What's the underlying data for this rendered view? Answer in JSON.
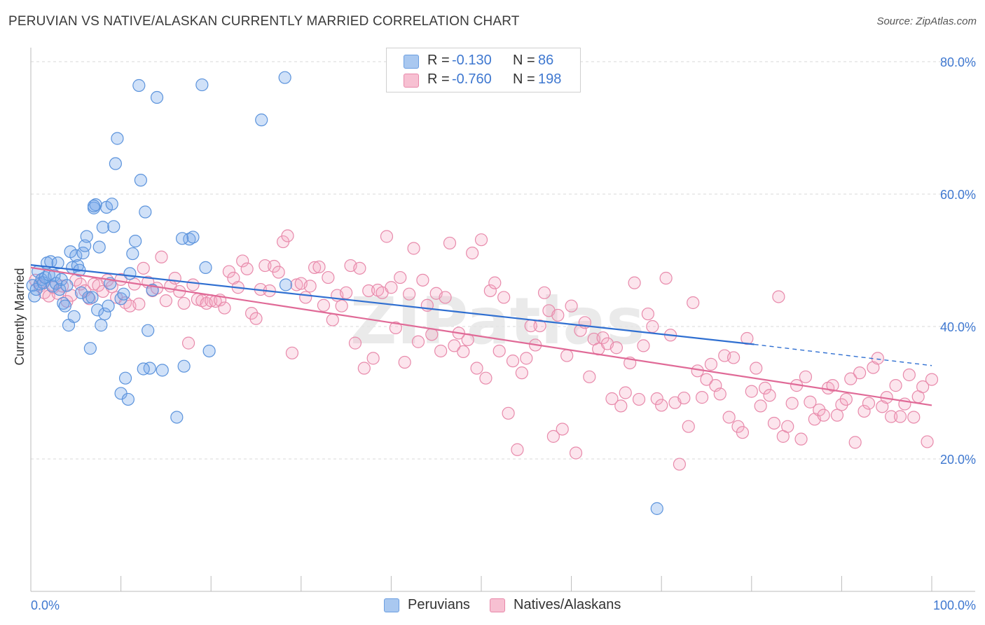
{
  "title": "PERUVIAN VS NATIVE/ALASKAN CURRENTLY MARRIED CORRELATION CHART",
  "source": "Source: ZipAtlas.com",
  "watermark": "ZIPatlas",
  "legend_stats": [
    {
      "r_label": "R =",
      "r_value": "-0.130",
      "n_label": "N =",
      "n_value": "86",
      "color": "#a9c8f0",
      "border": "#6b9ee0"
    },
    {
      "r_label": "R =",
      "r_value": "-0.760",
      "n_label": "N =",
      "n_value": "198",
      "color": "#f7c0d2",
      "border": "#e889aa"
    }
  ],
  "bottom_legend": [
    {
      "label": "Peruvians",
      "color": "#a9c8f0",
      "border": "#6b9ee0"
    },
    {
      "label": "Natives/Alaskans",
      "color": "#f7c0d2",
      "border": "#e889aa"
    }
  ],
  "colors": {
    "blue_fill": "rgba(120,170,235,0.35)",
    "blue_stroke": "#5b93dc",
    "blue_line": "#2f6fd1",
    "pink_fill": "rgba(245,170,195,0.30)",
    "pink_stroke": "#e88aab",
    "pink_line": "#e06a97",
    "grid": "#d9d9d9",
    "tick_label": "#3f78d0"
  },
  "chart_data": {
    "type": "scatter",
    "title": "PERUVIAN VS NATIVE/ALASKAN CURRENTLY MARRIED CORRELATION CHART",
    "xlabel": "",
    "ylabel": "Currently Married",
    "xlim": [
      0,
      100
    ],
    "ylim": [
      0,
      85
    ],
    "x_tick_labels": [
      "0.0%",
      "100.0%"
    ],
    "y_ticks": [
      20,
      40,
      60,
      80
    ],
    "y_tick_labels": [
      "20.0%",
      "40.0%",
      "60.0%",
      "80.0%"
    ],
    "grid": true,
    "legend_position": "top-center",
    "series": [
      {
        "name": "Peruvians",
        "trend": {
          "x": [
            0,
            80.3
          ],
          "y": [
            49.3,
            37.3
          ],
          "dashed_to": [
            100,
            34.1
          ]
        },
        "points": [
          [
            0.2,
            46.2
          ],
          [
            0.4,
            44.6
          ],
          [
            0.6,
            45.6
          ],
          [
            0.8,
            48.3
          ],
          [
            1.0,
            46.4
          ],
          [
            1.2,
            47.1
          ],
          [
            1.4,
            46.6
          ],
          [
            1.6,
            47.4
          ],
          [
            1.8,
            49.6
          ],
          [
            2.0,
            47.8
          ],
          [
            2.2,
            49.8
          ],
          [
            2.4,
            46.1
          ],
          [
            2.6,
            47.7
          ],
          [
            2.8,
            46.5
          ],
          [
            3.0,
            49.6
          ],
          [
            3.2,
            45.6
          ],
          [
            3.4,
            47.1
          ],
          [
            3.6,
            43.5
          ],
          [
            3.8,
            43.1
          ],
          [
            4.0,
            46.2
          ],
          [
            4.2,
            40.2
          ],
          [
            4.4,
            51.3
          ],
          [
            4.6,
            48.9
          ],
          [
            4.8,
            41.5
          ],
          [
            5.0,
            50.7
          ],
          [
            5.2,
            49.2
          ],
          [
            5.4,
            48.5
          ],
          [
            5.6,
            45.1
          ],
          [
            5.8,
            51.1
          ],
          [
            6.0,
            52.2
          ],
          [
            6.2,
            53.6
          ],
          [
            6.4,
            44.4
          ],
          [
            6.6,
            36.7
          ],
          [
            6.8,
            44.4
          ],
          [
            7.0,
            57.9
          ],
          [
            7.2,
            58.4
          ],
          [
            7.4,
            42.5
          ],
          [
            7.6,
            52.0
          ],
          [
            7.8,
            40.2
          ],
          [
            7.0,
            58.2
          ],
          [
            8.0,
            55.0
          ],
          [
            8.2,
            41.9
          ],
          [
            8.4,
            58.0
          ],
          [
            8.6,
            43.1
          ],
          [
            8.8,
            46.5
          ],
          [
            9.0,
            58.5
          ],
          [
            9.2,
            55.1
          ],
          [
            9.4,
            64.6
          ],
          [
            9.6,
            68.4
          ],
          [
            10.0,
            44.2
          ],
          [
            10.3,
            44.9
          ],
          [
            10.0,
            29.9
          ],
          [
            10.5,
            32.2
          ],
          [
            10.8,
            29.0
          ],
          [
            11.0,
            48.0
          ],
          [
            11.3,
            51.0
          ],
          [
            11.6,
            52.9
          ],
          [
            12.0,
            76.4
          ],
          [
            12.2,
            62.1
          ],
          [
            12.7,
            57.3
          ],
          [
            13.0,
            39.4
          ],
          [
            13.2,
            33.7
          ],
          [
            13.5,
            45.5
          ],
          [
            12.5,
            33.6
          ],
          [
            14.0,
            74.6
          ],
          [
            14.6,
            33.4
          ],
          [
            16.2,
            26.3
          ],
          [
            17.0,
            34.0
          ],
          [
            17.6,
            53.2
          ],
          [
            18.0,
            53.5
          ],
          [
            16.8,
            53.3
          ],
          [
            19.0,
            76.5
          ],
          [
            19.4,
            48.9
          ],
          [
            19.8,
            36.3
          ],
          [
            25.6,
            71.2
          ],
          [
            28.2,
            77.6
          ],
          [
            28.3,
            46.3
          ],
          [
            69.5,
            12.5
          ]
        ]
      },
      {
        "name": "Natives/Alaskans",
        "trend": {
          "x": [
            0,
            100
          ],
          "y": [
            48.9,
            28.1
          ]
        },
        "points": [
          [
            0.5,
            47.0
          ],
          [
            1.0,
            46.1
          ],
          [
            1.5,
            45.1
          ],
          [
            2.0,
            44.6
          ],
          [
            2.5,
            45.9
          ],
          [
            3.0,
            45.0
          ],
          [
            3.5,
            46.1
          ],
          [
            4.0,
            43.8
          ],
          [
            4.5,
            44.7
          ],
          [
            5.0,
            47.0
          ],
          [
            5.5,
            46.4
          ],
          [
            6.0,
            45.4
          ],
          [
            6.5,
            44.2
          ],
          [
            7.0,
            46.4
          ],
          [
            7.5,
            46.2
          ],
          [
            8.0,
            45.3
          ],
          [
            8.5,
            47.0
          ],
          [
            9.0,
            46.0
          ],
          [
            9.5,
            44.4
          ],
          [
            10.0,
            47.1
          ],
          [
            10.5,
            43.6
          ],
          [
            11.0,
            43.1
          ],
          [
            11.5,
            46.4
          ],
          [
            12.0,
            43.4
          ],
          [
            12.5,
            48.8
          ],
          [
            13.0,
            46.7
          ],
          [
            13.5,
            45.4
          ],
          [
            14.0,
            45.8
          ],
          [
            14.5,
            50.5
          ],
          [
            15.0,
            43.9
          ],
          [
            15.5,
            46.1
          ],
          [
            16.0,
            47.3
          ],
          [
            16.5,
            45.3
          ],
          [
            17.0,
            43.5
          ],
          [
            17.5,
            37.5
          ],
          [
            18.0,
            46.3
          ],
          [
            18.5,
            44.1
          ],
          [
            19.0,
            43.9
          ],
          [
            19.5,
            43.5
          ],
          [
            20.0,
            43.9
          ],
          [
            20.5,
            43.8
          ],
          [
            21.0,
            44.0
          ],
          [
            21.5,
            42.8
          ],
          [
            22.0,
            48.3
          ],
          [
            22.5,
            47.3
          ],
          [
            23.0,
            45.9
          ],
          [
            23.5,
            49.9
          ],
          [
            24.0,
            48.7
          ],
          [
            24.5,
            42.0
          ],
          [
            25.0,
            41.2
          ],
          [
            25.5,
            45.6
          ],
          [
            26.0,
            49.2
          ],
          [
            26.5,
            45.4
          ],
          [
            27.0,
            49.1
          ],
          [
            27.5,
            48.2
          ],
          [
            28.0,
            52.8
          ],
          [
            28.5,
            53.7
          ],
          [
            29.0,
            36.0
          ],
          [
            29.5,
            46.3
          ],
          [
            30.0,
            46.5
          ],
          [
            30.5,
            44.4
          ],
          [
            31.0,
            46.1
          ],
          [
            31.5,
            48.9
          ],
          [
            32.0,
            49.0
          ],
          [
            32.5,
            43.2
          ],
          [
            33.0,
            47.4
          ],
          [
            33.5,
            41.0
          ],
          [
            34.0,
            44.7
          ],
          [
            34.5,
            43.1
          ],
          [
            35.0,
            45.1
          ],
          [
            35.5,
            49.2
          ],
          [
            36.0,
            37.5
          ],
          [
            36.5,
            48.8
          ],
          [
            37.0,
            33.7
          ],
          [
            37.5,
            45.4
          ],
          [
            38.0,
            35.2
          ],
          [
            38.5,
            45.5
          ],
          [
            39.0,
            45.1
          ],
          [
            39.5,
            53.6
          ],
          [
            40.0,
            45.9
          ],
          [
            40.5,
            39.8
          ],
          [
            41.0,
            47.4
          ],
          [
            41.5,
            34.6
          ],
          [
            42.0,
            44.9
          ],
          [
            42.5,
            51.8
          ],
          [
            43.0,
            37.7
          ],
          [
            43.5,
            47.0
          ],
          [
            44.0,
            43.2
          ],
          [
            44.5,
            38.8
          ],
          [
            45.0,
            45.0
          ],
          [
            45.5,
            36.3
          ],
          [
            46.0,
            44.4
          ],
          [
            46.5,
            52.6
          ],
          [
            47.0,
            37.1
          ],
          [
            47.5,
            39.0
          ],
          [
            48.0,
            36.2
          ],
          [
            48.5,
            38.0
          ],
          [
            49.0,
            51.1
          ],
          [
            49.5,
            33.7
          ],
          [
            50.0,
            53.1
          ],
          [
            50.5,
            32.2
          ],
          [
            51.0,
            45.4
          ],
          [
            51.5,
            46.6
          ],
          [
            52.0,
            36.3
          ],
          [
            52.5,
            44.4
          ],
          [
            53.0,
            26.9
          ],
          [
            53.5,
            34.8
          ],
          [
            54.0,
            21.4
          ],
          [
            54.5,
            33.0
          ],
          [
            55.0,
            35.2
          ],
          [
            55.5,
            40.1
          ],
          [
            56.0,
            37.2
          ],
          [
            56.5,
            40.1
          ],
          [
            57.0,
            45.1
          ],
          [
            57.5,
            42.4
          ],
          [
            58.0,
            23.4
          ],
          [
            58.5,
            41.7
          ],
          [
            59.0,
            24.5
          ],
          [
            59.5,
            35.6
          ],
          [
            60.0,
            43.1
          ],
          [
            60.5,
            20.9
          ],
          [
            61.0,
            39.4
          ],
          [
            61.5,
            40.6
          ],
          [
            62.0,
            32.4
          ],
          [
            62.5,
            38.1
          ],
          [
            63.0,
            36.6
          ],
          [
            63.5,
            38.3
          ],
          [
            64.0,
            37.4
          ],
          [
            64.5,
            29.1
          ],
          [
            65.0,
            36.8
          ],
          [
            65.5,
            28.0
          ],
          [
            66.0,
            30.0
          ],
          [
            66.5,
            34.5
          ],
          [
            67.0,
            46.6
          ],
          [
            67.5,
            29.0
          ],
          [
            68.0,
            37.1
          ],
          [
            68.5,
            41.9
          ],
          [
            69.0,
            40.0
          ],
          [
            69.5,
            29.1
          ],
          [
            70.0,
            28.1
          ],
          [
            70.5,
            47.3
          ],
          [
            71.0,
            38.7
          ],
          [
            71.5,
            28.5
          ],
          [
            72.0,
            19.2
          ],
          [
            72.5,
            29.2
          ],
          [
            73.0,
            24.9
          ],
          [
            73.5,
            43.6
          ],
          [
            74.0,
            33.3
          ],
          [
            74.5,
            29.3
          ],
          [
            75.0,
            32.0
          ],
          [
            75.5,
            34.3
          ],
          [
            76.0,
            31.1
          ],
          [
            76.5,
            29.8
          ],
          [
            77.0,
            35.6
          ],
          [
            77.5,
            26.3
          ],
          [
            78.0,
            35.3
          ],
          [
            78.5,
            24.9
          ],
          [
            79.0,
            24.0
          ],
          [
            79.5,
            38.2
          ],
          [
            80.0,
            30.2
          ],
          [
            80.5,
            33.7
          ],
          [
            81.0,
            28.0
          ],
          [
            81.5,
            30.7
          ],
          [
            82.0,
            29.6
          ],
          [
            82.5,
            25.4
          ],
          [
            83.0,
            44.5
          ],
          [
            83.5,
            23.4
          ],
          [
            84.0,
            24.9
          ],
          [
            84.5,
            28.4
          ],
          [
            85.0,
            31.1
          ],
          [
            85.5,
            23.0
          ],
          [
            86.0,
            32.4
          ],
          [
            86.5,
            28.6
          ],
          [
            87.0,
            26.0
          ],
          [
            87.5,
            27.4
          ],
          [
            88.0,
            26.6
          ],
          [
            88.5,
            30.7
          ],
          [
            89.0,
            31.1
          ],
          [
            89.5,
            26.6
          ],
          [
            90.0,
            28.2
          ],
          [
            90.5,
            29.0
          ],
          [
            91.0,
            32.1
          ],
          [
            91.5,
            22.5
          ],
          [
            92.0,
            33.0
          ],
          [
            92.5,
            27.2
          ],
          [
            93.0,
            28.4
          ],
          [
            93.5,
            33.8
          ],
          [
            94.0,
            35.2
          ],
          [
            94.5,
            27.9
          ],
          [
            95.0,
            29.3
          ],
          [
            95.5,
            26.4
          ],
          [
            96.0,
            31.1
          ],
          [
            96.5,
            26.4
          ],
          [
            97.0,
            28.3
          ],
          [
            97.5,
            32.7
          ],
          [
            98.0,
            26.3
          ],
          [
            98.5,
            29.4
          ],
          [
            99.0,
            30.9
          ],
          [
            99.5,
            22.6
          ],
          [
            100.0,
            32.0
          ]
        ]
      }
    ]
  }
}
